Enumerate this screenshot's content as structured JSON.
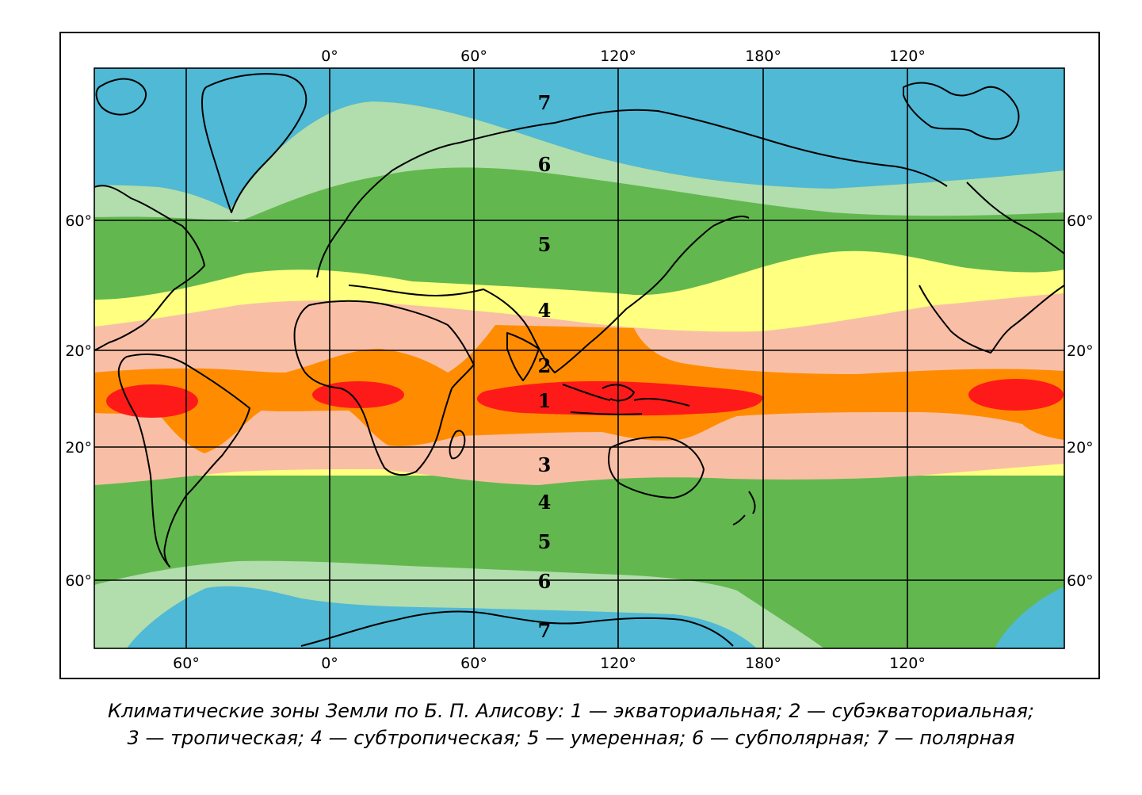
{
  "map": {
    "top_longitude_labels": [
      "0°",
      "60°",
      "120°",
      "180°",
      "120°"
    ],
    "bottom_longitude_labels": [
      "60°",
      "0°",
      "60°",
      "120°",
      "180°",
      "120°"
    ],
    "left_latitude_labels": [
      "60°",
      "20°",
      "20°",
      "60°"
    ],
    "right_latitude_labels": [
      "60°",
      "20°",
      "20°",
      "60°"
    ],
    "zone_numbers": [
      "7",
      "6",
      "5",
      "4",
      "2",
      "1",
      "3",
      "4",
      "5",
      "6",
      "7"
    ],
    "colors": {
      "equatorial": "#ff1a1a",
      "subequatorial": "#ff8c00",
      "tropical": "#f9bfa6",
      "subtropical": "#ffff80",
      "temperate": "#62b84e",
      "subpolar": "#b2ddad",
      "polar": "#4fb9d6"
    }
  },
  "caption": {
    "line1": "Климатические зоны Земли по Б. П. Алисову: 1 — экваториальная; 2 — субэкваториальная;",
    "line2": "3 — тропическая; 4 — субтропическая; 5 — умеренная; 6 — субполярная; 7 — полярная"
  }
}
